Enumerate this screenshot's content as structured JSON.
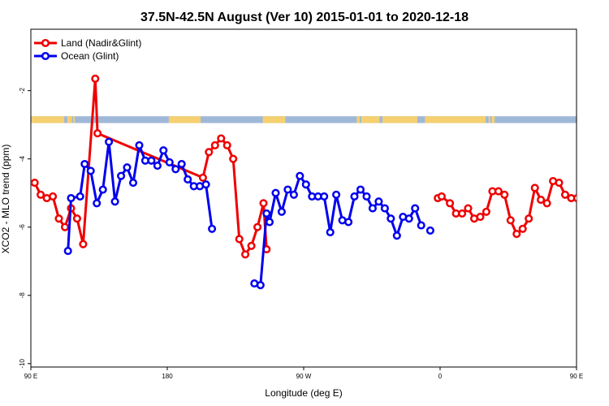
{
  "chart_data": {
    "type": "line",
    "title": "37.5N-42.5N August (Ver 10)   2015-01-01 to 2020-12-18",
    "xlabel": "Longitude (deg E)",
    "ylabel": "XCO2 - MLO trend (ppm)",
    "x_tick_labels": [
      "90 E",
      "180",
      "90 W",
      "0",
      "90 E",
      "180"
    ],
    "y_ticks": [
      -2,
      -4,
      -6,
      -8,
      -10
    ],
    "xlim": [
      90,
      450
    ],
    "ylim": [
      -10.1,
      -0.2
    ],
    "grid": false,
    "legend_position": "top-left",
    "series": [
      {
        "name": "Land (Nadir&Glint)",
        "color": "#ee0000",
        "points": [
          [
            92.5,
            -4.7
          ],
          [
            96.5,
            -5.05
          ],
          [
            100.5,
            -5.15
          ],
          [
            104.5,
            -5.1
          ],
          [
            108.5,
            -5.75
          ],
          [
            112.5,
            -6.0
          ],
          [
            116.5,
            -5.45
          ],
          [
            120.5,
            -5.75
          ],
          [
            124.5,
            -6.5
          ],
          [
            132.5,
            -1.65
          ],
          [
            134,
            -3.25
          ],
          [
            203.5,
            -4.55
          ],
          [
            207.5,
            -3.8
          ],
          [
            211.5,
            -3.6
          ],
          [
            215.5,
            -3.4
          ],
          [
            219.5,
            -3.6
          ],
          [
            223.5,
            -4.0
          ],
          [
            227.5,
            -6.35
          ],
          [
            231.5,
            -6.8
          ],
          [
            235.5,
            -6.55
          ],
          [
            239.5,
            -6.0
          ],
          [
            243.5,
            -5.3
          ],
          [
            245.5,
            -6.65
          ],
          null,
          [
            358.5,
            -5.15
          ],
          [
            361,
            -5.1
          ],
          [
            366.5,
            -5.3
          ],
          [
            370.5,
            -5.6
          ],
          [
            374.5,
            -5.6
          ],
          [
            378.5,
            -5.45
          ],
          [
            382.5,
            -5.75
          ],
          [
            386.5,
            -5.7
          ],
          [
            390.5,
            -5.55
          ],
          [
            394.5,
            -4.95
          ],
          [
            398.5,
            -4.95
          ],
          [
            402.5,
            -5.05
          ],
          [
            406.5,
            -5.8
          ],
          [
            410.5,
            -6.2
          ],
          [
            414.5,
            -6.05
          ],
          [
            418.5,
            -5.75
          ],
          [
            422.5,
            -4.85
          ],
          [
            426.5,
            -5.2
          ],
          [
            430.5,
            -5.3
          ],
          [
            434.5,
            -4.65
          ],
          [
            438.5,
            -4.7
          ],
          [
            442.5,
            -5.05
          ],
          [
            446.5,
            -5.15
          ],
          [
            450.5,
            -5.15
          ],
          [
            454.5,
            -5.75
          ],
          [
            458.5,
            -6.0
          ],
          [
            462.5,
            -5.45
          ],
          [
            466.5,
            -5.75
          ],
          [
            470.5,
            -6.5
          ],
          [
            478.5,
            -1.65
          ],
          [
            480,
            -3.25
          ]
        ]
      },
      {
        "name": "Ocean (Glint)",
        "color": "#0000ee",
        "points": [
          [
            114.5,
            -6.7
          ],
          [
            116.5,
            -5.15
          ],
          [
            122.5,
            -5.1
          ],
          [
            125.5,
            -4.15
          ],
          [
            129.5,
            -4.35
          ],
          [
            133.5,
            -5.3
          ],
          [
            137.5,
            -4.9
          ],
          [
            141.5,
            -3.5
          ],
          [
            145.5,
            -5.25
          ],
          [
            149.5,
            -4.5
          ],
          [
            153.5,
            -4.25
          ],
          [
            157.5,
            -4.7
          ],
          [
            161.5,
            -3.6
          ],
          [
            165.5,
            -4.05
          ],
          [
            169.5,
            -4.05
          ],
          [
            173.5,
            -4.2
          ],
          [
            177.5,
            -3.75
          ],
          [
            181.5,
            -4.1
          ],
          [
            185.5,
            -4.3
          ],
          [
            189.5,
            -4.15
          ],
          [
            193.5,
            -4.6
          ],
          [
            197.5,
            -4.8
          ],
          [
            201.5,
            -4.8
          ],
          [
            205.5,
            -4.75
          ],
          [
            209.5,
            -6.05
          ],
          null,
          [
            237.5,
            -7.65
          ],
          [
            241.5,
            -7.7
          ],
          [
            245.5,
            -5.6
          ],
          [
            247.5,
            -5.85
          ],
          [
            251.5,
            -5.0
          ],
          [
            255.5,
            -5.55
          ],
          [
            259.5,
            -4.9
          ],
          [
            263.5,
            -5.05
          ],
          [
            267.5,
            -4.5
          ],
          [
            271.5,
            -4.75
          ],
          [
            275.5,
            -5.1
          ],
          [
            279.5,
            -5.1
          ],
          [
            283.5,
            -5.1
          ],
          [
            287.5,
            -6.15
          ],
          [
            291.5,
            -5.05
          ],
          [
            295.5,
            -5.8
          ],
          [
            299.5,
            -5.85
          ],
          [
            303.5,
            -5.1
          ],
          [
            307.5,
            -4.9
          ],
          [
            311.5,
            -5.1
          ],
          [
            315.5,
            -5.45
          ],
          [
            319.5,
            -5.25
          ],
          [
            323.5,
            -5.45
          ],
          [
            327.5,
            -5.75
          ],
          [
            331.5,
            -6.25
          ],
          [
            335.5,
            -5.7
          ],
          [
            339.5,
            -5.75
          ],
          [
            343.5,
            -5.45
          ],
          [
            347.5,
            -5.95
          ],
          null,
          [
            353.5,
            -6.1
          ],
          null,
          [
            460.5,
            -6.7
          ],
          [
            462.5,
            -5.15
          ],
          [
            468.5,
            -5.1
          ],
          [
            471.5,
            -4.15
          ],
          [
            475.5,
            -4.35
          ],
          [
            479.5,
            -5.3
          ],
          [
            483.5,
            -4.9
          ],
          [
            487.5,
            -3.5
          ],
          [
            491.5,
            -5.25
          ],
          [
            495.5,
            -4.5
          ],
          [
            499.5,
            -4.25
          ],
          [
            503.5,
            -4.7
          ],
          [
            507.5,
            -3.6
          ]
        ]
      }
    ],
    "map_band": {
      "y_range": [
        -2.75,
        -2.95
      ],
      "ocean_color": "#a0b8d8",
      "land_color": "#f5d070",
      "land_segments": [
        [
          90,
          112
        ],
        [
          114,
          117
        ],
        [
          118,
          119
        ],
        [
          181,
          202
        ],
        [
          243,
          258
        ],
        [
          305,
          307
        ],
        [
          308,
          320
        ],
        [
          322,
          345
        ],
        [
          350,
          390
        ],
        [
          392,
          393
        ],
        [
          394,
          396
        ]
      ]
    }
  }
}
